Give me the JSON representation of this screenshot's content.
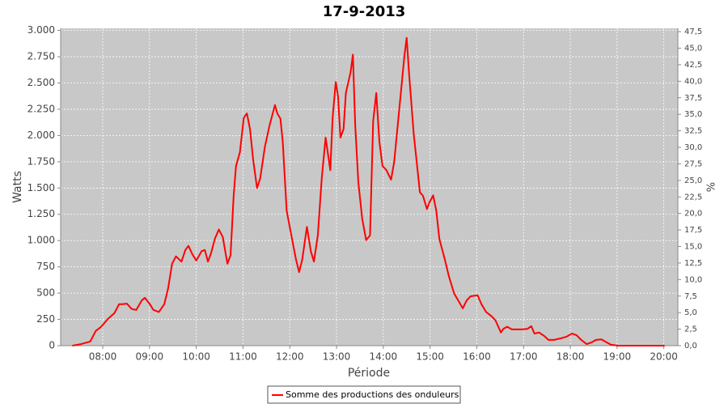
{
  "chart_data": {
    "type": "line",
    "title": "17-9-2013",
    "xlabel": "Période",
    "ylabel": "Watts",
    "y2label": "%",
    "grid": true,
    "legend": "bottom",
    "xlim": [
      "07:06",
      "20:18"
    ],
    "xticks": [
      "08:00",
      "09:00",
      "10:00",
      "11:00",
      "12:00",
      "13:00",
      "14:00",
      "15:00",
      "16:00",
      "17:00",
      "18:00",
      "19:00",
      "20:00"
    ],
    "ylim": [
      0,
      3020
    ],
    "yticks": [
      0,
      {
        "value": 250,
        "label": "250"
      },
      {
        "value": 500,
        "label": "500"
      },
      {
        "value": 750,
        "label": "750"
      },
      {
        "value": 1000,
        "label": "1.000"
      },
      {
        "value": 1250,
        "label": "1.250"
      },
      {
        "value": 1500,
        "label": "1.500"
      },
      {
        "value": 1750,
        "label": "1.750"
      },
      {
        "value": 2000,
        "label": "2.000"
      },
      {
        "value": 2250,
        "label": "2.250"
      },
      {
        "value": 2500,
        "label": "2.500"
      },
      {
        "value": 2750,
        "label": "2.750"
      },
      {
        "value": 3000,
        "label": "3.000"
      }
    ],
    "y2lim": [
      0,
      48
    ],
    "y2ticks": [
      {
        "value": 0,
        "label": "0,0"
      },
      {
        "value": 2.5,
        "label": "2,5"
      },
      {
        "value": 5,
        "label": "5,0"
      },
      {
        "value": 7.5,
        "label": "7,5"
      },
      {
        "value": 10,
        "label": "10,0"
      },
      {
        "value": 12.5,
        "label": "12,5"
      },
      {
        "value": 15,
        "label": "15,0"
      },
      {
        "value": 17.5,
        "label": "17,5"
      },
      {
        "value": 20,
        "label": "20,0"
      },
      {
        "value": 22.5,
        "label": "22,5"
      },
      {
        "value": 25,
        "label": "25,0"
      },
      {
        "value": 27.5,
        "label": "27,5"
      },
      {
        "value": 30,
        "label": "30,0"
      },
      {
        "value": 32.5,
        "label": "32,5"
      },
      {
        "value": 35,
        "label": "35,0"
      },
      {
        "value": 37.5,
        "label": "37,5"
      },
      {
        "value": 40,
        "label": "40,0"
      },
      {
        "value": 42.5,
        "label": "42,5"
      },
      {
        "value": 45,
        "label": "45,0"
      },
      {
        "value": 47.5,
        "label": "47,5"
      }
    ],
    "x": [
      "07:21",
      "07:32",
      "07:44",
      "07:51",
      "07:58",
      "08:06",
      "08:15",
      "08:21",
      "08:25",
      "08:31",
      "08:37",
      "08:43",
      "08:50",
      "08:54",
      "09:00",
      "09:05",
      "09:12",
      "09:19",
      "09:24",
      "09:29",
      "09:34",
      "09:41",
      "09:46",
      "09:50",
      "09:55",
      "10:00",
      "10:07",
      "10:11",
      "10:15",
      "10:19",
      "10:24",
      "10:29",
      "10:34",
      "10:40",
      "10:44",
      "10:48",
      "10:51",
      "10:56",
      "11:01",
      "11:05",
      "11:09",
      "11:13",
      "11:18",
      "11:22",
      "11:28",
      "11:34",
      "11:41",
      "11:44",
      "11:48",
      "11:51",
      "11:56",
      "12:02",
      "12:08",
      "12:12",
      "12:16",
      "12:22",
      "12:27",
      "12:31",
      "12:36",
      "12:41",
      "12:46",
      "12:52",
      "12:55",
      "12:59",
      "13:02",
      "13:05",
      "13:09",
      "13:12",
      "13:18",
      "13:21",
      "13:24",
      "13:28",
      "13:33",
      "13:38",
      "13:43",
      "13:47",
      "13:51",
      "13:55",
      "13:59",
      "14:04",
      "14:10",
      "14:14",
      "14:22",
      "14:27",
      "14:30",
      "14:33",
      "14:39",
      "14:44",
      "14:47",
      "14:51",
      "14:56",
      "14:59",
      "15:04",
      "15:08",
      "15:12",
      "15:19",
      "15:24",
      "15:31",
      "15:37",
      "15:42",
      "15:47",
      "15:52",
      "16:01",
      "16:06",
      "16:12",
      "16:19",
      "16:24",
      "16:31",
      "16:34",
      "16:39",
      "16:45",
      "16:58",
      "17:05",
      "17:10",
      "17:14",
      "17:20",
      "17:26",
      "17:32",
      "17:39",
      "17:48",
      "17:55",
      "18:02",
      "18:08",
      "18:14",
      "18:21",
      "18:27",
      "18:33",
      "18:40",
      "18:47",
      "18:52",
      "19:01",
      "20:01"
    ],
    "series": [
      {
        "name": "Somme des productions des onduleurs",
        "color": "#ff0000",
        "values": [
          0,
          15,
          40,
          140,
          180,
          250,
          310,
          395,
          395,
          400,
          350,
          340,
          430,
          455,
          400,
          340,
          320,
          395,
          550,
          780,
          850,
          800,
          910,
          950,
          870,
          810,
          900,
          910,
          800,
          880,
          1020,
          1105,
          1035,
          780,
          860,
          1430,
          1710,
          1840,
          2170,
          2210,
          2060,
          1770,
          1500,
          1590,
          1890,
          2095,
          2290,
          2210,
          2160,
          1940,
          1285,
          1050,
          820,
          700,
          820,
          1130,
          900,
          800,
          1050,
          1590,
          1980,
          1670,
          2170,
          2510,
          2370,
          1980,
          2060,
          2405,
          2600,
          2770,
          2095,
          1555,
          1205,
          1005,
          1050,
          2135,
          2405,
          1940,
          1710,
          1670,
          1580,
          1750,
          2365,
          2750,
          2930,
          2600,
          2020,
          1670,
          1460,
          1425,
          1300,
          1360,
          1430,
          1285,
          1015,
          820,
          665,
          495,
          420,
          355,
          430,
          470,
          480,
          395,
          320,
          280,
          240,
          125,
          160,
          180,
          155,
          155,
          160,
          185,
          115,
          125,
          95,
          55,
          55,
          70,
          85,
          115,
          100,
          55,
          15,
          30,
          55,
          60,
          30,
          10,
          0,
          0
        ]
      }
    ]
  }
}
